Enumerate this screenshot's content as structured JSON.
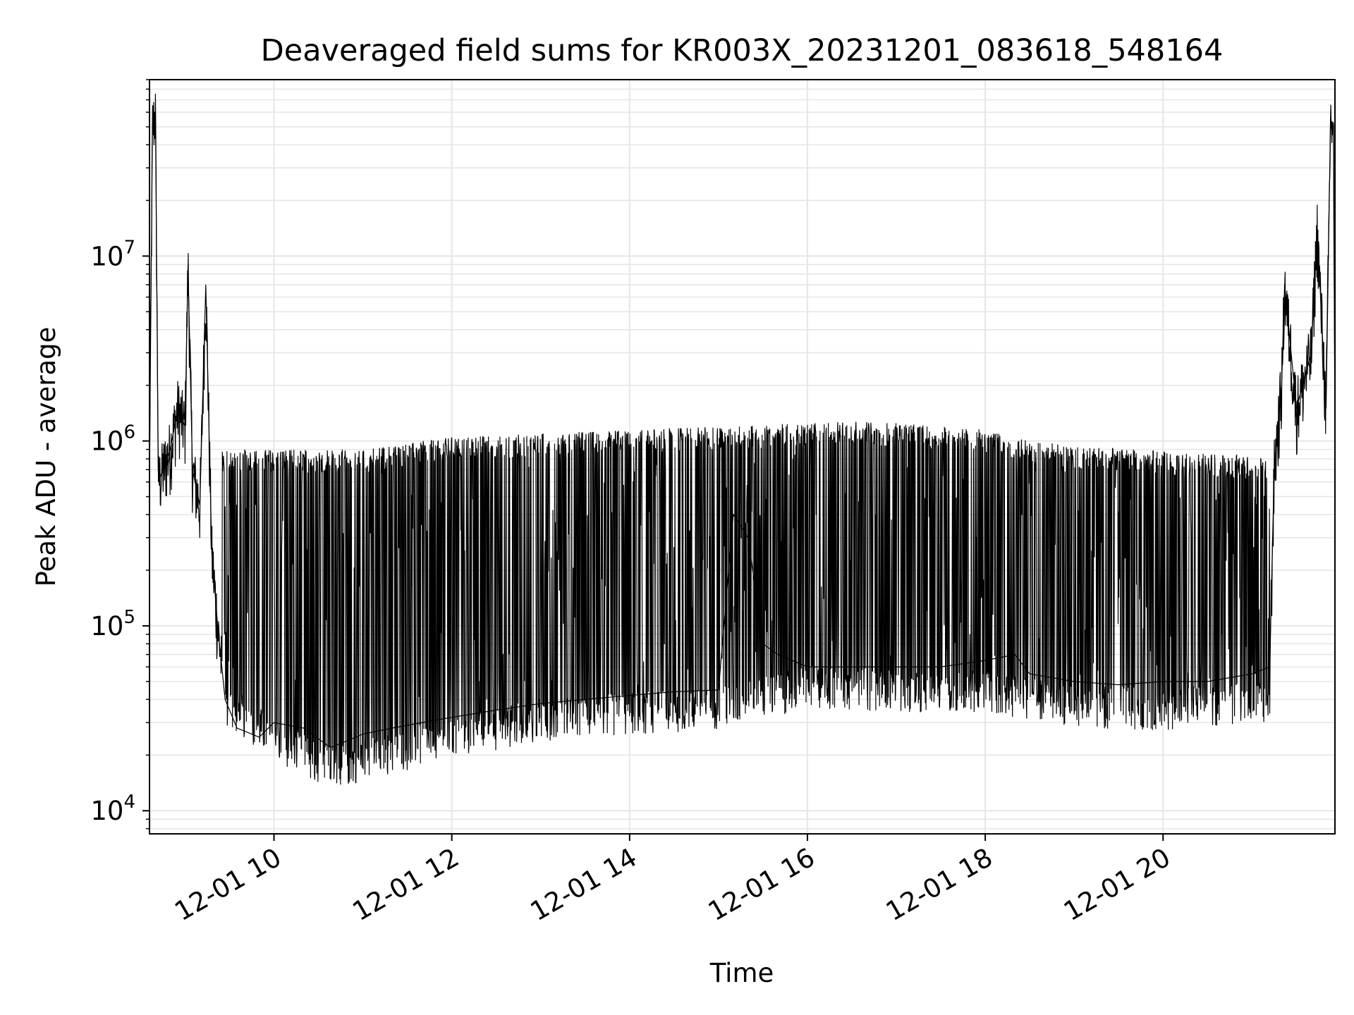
{
  "chart_data": {
    "type": "line",
    "title": "Deaveraged field sums for KR003X_20231201_083618_548164",
    "xlabel": "Time",
    "ylabel": "Peak ADU - average",
    "yscale": "log",
    "xlim": [
      "2023-12-01 08:36",
      "2023-12-01 21:56"
    ],
    "ylim": [
      7500,
      90000000
    ],
    "grid": true,
    "x_ticks": [
      {
        "value": "2023-12-01 10:00",
        "label": "12-01 10"
      },
      {
        "value": "2023-12-01 12:00",
        "label": "12-01 12"
      },
      {
        "value": "2023-12-01 14:00",
        "label": "12-01 14"
      },
      {
        "value": "2023-12-01 16:00",
        "label": "12-01 16"
      },
      {
        "value": "2023-12-01 18:00",
        "label": "12-01 18"
      },
      {
        "value": "2023-12-01 20:00",
        "label": "12-01 20"
      }
    ],
    "y_ticks": [
      {
        "value": 10000,
        "base": "10",
        "exp": "4"
      },
      {
        "value": 100000,
        "base": "10",
        "exp": "5"
      },
      {
        "value": 1000000,
        "base": "10",
        "exp": "6"
      },
      {
        "value": 10000000,
        "base": "10",
        "exp": "7"
      }
    ],
    "series": [
      {
        "color": "#000000",
        "points": [
          [
            "2023-12-01 08:36",
            700000
          ],
          [
            "2023-12-01 08:38",
            50000000
          ],
          [
            "2023-12-01 08:40",
            60000000
          ],
          [
            "2023-12-01 08:42",
            600000
          ],
          [
            "2023-12-01 08:50",
            900000
          ],
          [
            "2023-12-01 08:55",
            1500000
          ],
          [
            "2023-12-01 09:00",
            1200000
          ],
          [
            "2023-12-01 09:02",
            9000000
          ],
          [
            "2023-12-01 09:05",
            700000
          ],
          [
            "2023-12-01 09:10",
            450000
          ],
          [
            "2023-12-01 09:14",
            7000000
          ],
          [
            "2023-12-01 09:18",
            250000
          ],
          [
            "2023-12-01 09:22",
            100000
          ],
          [
            "2023-12-01 09:27",
            40000
          ],
          [
            "2023-12-01 09:35",
            28000
          ],
          [
            "2023-12-01 09:50",
            25000
          ],
          [
            "2023-12-01 10:00",
            30000
          ],
          [
            "2023-12-01 10:20",
            28000
          ],
          [
            "2023-12-01 10:38",
            22000
          ],
          [
            "2023-12-01 10:50",
            24000
          ],
          [
            "2023-12-01 11:00",
            26000
          ],
          [
            "2023-12-01 11:20",
            28000
          ],
          [
            "2023-12-01 11:40",
            30000
          ],
          [
            "2023-12-01 12:00",
            32000
          ],
          [
            "2023-12-01 12:30",
            35000
          ],
          [
            "2023-12-01 13:00",
            38000
          ],
          [
            "2023-12-01 13:30",
            40000
          ],
          [
            "2023-12-01 14:00",
            42000
          ],
          [
            "2023-12-01 14:30",
            44000
          ],
          [
            "2023-12-01 15:00",
            45000
          ],
          [
            "2023-12-01 15:10",
            400000
          ],
          [
            "2023-12-01 15:20",
            300000
          ],
          [
            "2023-12-01 15:30",
            80000
          ],
          [
            "2023-12-01 15:40",
            70000
          ],
          [
            "2023-12-01 16:00",
            60000
          ],
          [
            "2023-12-01 16:30",
            60000
          ],
          [
            "2023-12-01 17:00",
            60000
          ],
          [
            "2023-12-01 17:30",
            60000
          ],
          [
            "2023-12-01 18:00",
            65000
          ],
          [
            "2023-12-01 18:20",
            70000
          ],
          [
            "2023-12-01 18:30",
            55000
          ],
          [
            "2023-12-01 19:00",
            50000
          ],
          [
            "2023-12-01 19:30",
            48000
          ],
          [
            "2023-12-01 20:00",
            50000
          ],
          [
            "2023-12-01 20:30",
            50000
          ],
          [
            "2023-12-01 21:00",
            55000
          ],
          [
            "2023-12-01 21:12",
            60000
          ],
          [
            "2023-12-01 21:15",
            700000
          ],
          [
            "2023-12-01 21:20",
            2000000
          ],
          [
            "2023-12-01 21:22",
            7000000
          ],
          [
            "2023-12-01 21:30",
            1500000
          ],
          [
            "2023-12-01 21:40",
            3000000
          ],
          [
            "2023-12-01 21:44",
            14000000
          ],
          [
            "2023-12-01 21:50",
            1500000
          ],
          [
            "2023-12-01 21:53",
            55000000
          ],
          [
            "2023-12-01 21:55",
            50000000
          ],
          [
            "2023-12-01 21:56",
            1000000
          ]
        ],
        "upper_envelope": [
          [
            "2023-12-01 09:25",
            900000
          ],
          [
            "2023-12-01 10:00",
            900000
          ],
          [
            "2023-12-01 11:00",
            900000
          ],
          [
            "2023-12-01 12:00",
            1050000
          ],
          [
            "2023-12-01 13:00",
            1100000
          ],
          [
            "2023-12-01 14:00",
            1150000
          ],
          [
            "2023-12-01 15:00",
            1200000
          ],
          [
            "2023-12-01 16:00",
            1250000
          ],
          [
            "2023-12-01 16:30",
            1280000
          ],
          [
            "2023-12-01 17:00",
            1250000
          ],
          [
            "2023-12-01 18:00",
            1150000
          ],
          [
            "2023-12-01 18:30",
            1000000
          ],
          [
            "2023-12-01 19:00",
            950000
          ],
          [
            "2023-12-01 20:00",
            880000
          ],
          [
            "2023-12-01 21:12",
            820000
          ]
        ],
        "lower_envelope": [
          [
            "2023-12-01 09:25",
            35000
          ],
          [
            "2023-12-01 10:00",
            22000
          ],
          [
            "2023-12-01 10:40",
            15000
          ],
          [
            "2023-12-01 11:00",
            17000
          ],
          [
            "2023-12-01 12:00",
            22000
          ],
          [
            "2023-12-01 13:00",
            28000
          ],
          [
            "2023-12-01 14:00",
            30000
          ],
          [
            "2023-12-01 15:00",
            32000
          ],
          [
            "2023-12-01 16:00",
            42000
          ],
          [
            "2023-12-01 17:00",
            40000
          ],
          [
            "2023-12-01 18:00",
            40000
          ],
          [
            "2023-12-01 19:00",
            33000
          ],
          [
            "2023-12-01 20:00",
            32000
          ],
          [
            "2023-12-01 21:12",
            35000
          ]
        ]
      }
    ]
  }
}
